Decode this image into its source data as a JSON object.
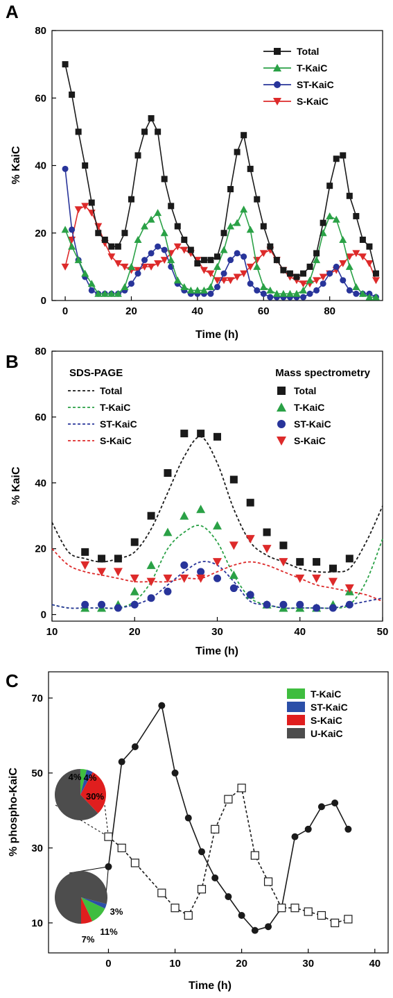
{
  "chart_data": [
    {
      "type": "line",
      "panel_label": "A",
      "xlabel": "Time (h)",
      "ylabel": "% KaiC",
      "xlim": [
        -4,
        96
      ],
      "ylim": [
        0,
        80
      ],
      "x_ticks": [
        0,
        20,
        40,
        60,
        80
      ],
      "y_ticks": [
        0,
        20,
        40,
        60,
        80
      ],
      "legend": {
        "placement": "top-right"
      },
      "series": [
        {
          "name": "Total",
          "color": "#1a1a1a",
          "marker": "square",
          "x": [
            0,
            2,
            4,
            6,
            8,
            10,
            12,
            14,
            16,
            18,
            20,
            22,
            24,
            26,
            28,
            30,
            32,
            34,
            36,
            38,
            40,
            42,
            44,
            46,
            48,
            50,
            52,
            54,
            56,
            58,
            60,
            62,
            64,
            66,
            68,
            70,
            72,
            74,
            76,
            78,
            80,
            82,
            84,
            86,
            88,
            90,
            92,
            94
          ],
          "y": [
            70,
            61,
            50,
            40,
            29,
            20,
            18,
            16,
            16,
            20,
            30,
            43,
            50,
            54,
            50,
            36,
            28,
            22,
            18,
            15,
            11,
            12,
            12,
            13,
            20,
            33,
            44,
            49,
            39,
            30,
            22,
            16,
            12,
            9,
            8,
            7,
            8,
            10,
            14,
            23,
            34,
            42,
            43,
            31,
            25,
            18,
            16,
            8
          ]
        },
        {
          "name": "T-KaiC",
          "color": "#2aa146",
          "marker": "triangle-up",
          "x": [
            0,
            2,
            4,
            6,
            8,
            10,
            12,
            14,
            16,
            18,
            20,
            22,
            24,
            26,
            28,
            30,
            32,
            34,
            36,
            38,
            40,
            42,
            44,
            46,
            48,
            50,
            52,
            54,
            56,
            58,
            60,
            62,
            64,
            66,
            68,
            70,
            72,
            74,
            76,
            78,
            80,
            82,
            84,
            86,
            88,
            90,
            92,
            94
          ],
          "y": [
            21,
            16,
            12,
            8,
            5,
            2,
            2,
            2,
            2,
            4,
            10,
            18,
            22,
            24,
            26,
            20,
            12,
            6,
            4,
            3,
            3,
            3,
            4,
            10,
            15,
            22,
            23,
            27,
            21,
            10,
            4,
            3,
            2,
            2,
            2,
            2,
            3,
            6,
            12,
            20,
            25,
            24,
            18,
            10,
            4,
            2,
            1,
            1
          ]
        },
        {
          "name": "ST-KaiC",
          "color": "#28349a",
          "marker": "circle",
          "x": [
            0,
            2,
            4,
            6,
            8,
            10,
            12,
            14,
            16,
            18,
            20,
            22,
            24,
            26,
            28,
            30,
            32,
            34,
            36,
            38,
            40,
            42,
            44,
            46,
            48,
            50,
            52,
            54,
            56,
            58,
            60,
            62,
            64,
            66,
            68,
            70,
            72,
            74,
            76,
            78,
            80,
            82,
            84,
            86,
            88,
            90,
            92,
            94
          ],
          "y": [
            39,
            21,
            12,
            7,
            3,
            2,
            2,
            2,
            2,
            3,
            5,
            8,
            12,
            14,
            16,
            15,
            10,
            5,
            3,
            2,
            2,
            2,
            2,
            4,
            8,
            12,
            14,
            13,
            5,
            3,
            2,
            1,
            1,
            1,
            1,
            1,
            1,
            2,
            3,
            5,
            8,
            10,
            6,
            3,
            2,
            2,
            2,
            1
          ]
        },
        {
          "name": "S-KaiC",
          "color": "#dd2a2a",
          "marker": "triangle-down",
          "x": [
            0,
            2,
            4,
            6,
            8,
            10,
            12,
            14,
            16,
            18,
            20,
            22,
            24,
            26,
            28,
            30,
            32,
            34,
            36,
            38,
            40,
            42,
            44,
            46,
            48,
            50,
            52,
            54,
            56,
            58,
            60,
            62,
            64,
            66,
            68,
            70,
            72,
            74,
            76,
            78,
            80,
            82,
            84,
            86,
            88,
            90,
            92,
            94
          ],
          "y": [
            10,
            18,
            27,
            28,
            26,
            22,
            17,
            13,
            11,
            10,
            9,
            9,
            10,
            10,
            11,
            12,
            14,
            16,
            15,
            14,
            12,
            9,
            8,
            6,
            6,
            6,
            7,
            8,
            10,
            12,
            14,
            15,
            12,
            9,
            7,
            6,
            5,
            5,
            6,
            7,
            8,
            9,
            11,
            13,
            14,
            13,
            11,
            6
          ]
        }
      ]
    },
    {
      "type": "line",
      "panel_label": "B",
      "xlabel": "Time (h)",
      "ylabel": "% KaiC",
      "xlim": [
        10,
        50
      ],
      "ylim": [
        -2,
        80
      ],
      "x_ticks": [
        10,
        20,
        30,
        40,
        50
      ],
      "y_ticks": [
        0,
        20,
        40,
        60,
        80
      ],
      "legend_left_title": "SDS-PAGE",
      "legend_right_title": "Mass spectrometry",
      "legend": {
        "placement": "top"
      },
      "series": [
        {
          "name": "Total",
          "method": "SDS-PAGE",
          "style": "dashed",
          "color": "#1a1a1a",
          "x": [
            10,
            12,
            14,
            16,
            18,
            20,
            22,
            24,
            26,
            28,
            30,
            32,
            34,
            36,
            38,
            40,
            42,
            44,
            46,
            48,
            50
          ],
          "y": [
            28,
            19,
            17,
            16,
            17,
            19,
            26,
            37,
            48,
            54,
            46,
            32,
            22,
            18,
            16,
            14,
            13,
            13,
            14,
            22,
            33
          ]
        },
        {
          "name": "T-KaiC",
          "method": "SDS-PAGE",
          "style": "dashed",
          "color": "#2aa146",
          "x": [
            10,
            12,
            14,
            16,
            18,
            20,
            22,
            24,
            26,
            28,
            30,
            32,
            34,
            36,
            38,
            40,
            42,
            44,
            46,
            48,
            50
          ],
          "y": [
            3,
            2,
            2,
            2,
            2,
            4,
            10,
            20,
            25,
            27,
            22,
            12,
            5,
            3,
            2,
            2,
            2,
            2,
            3,
            10,
            23
          ]
        },
        {
          "name": "ST-KaiC",
          "method": "SDS-PAGE",
          "style": "dashed",
          "color": "#28349a",
          "x": [
            10,
            12,
            14,
            16,
            18,
            20,
            22,
            24,
            26,
            28,
            30,
            32,
            34,
            36,
            38,
            40,
            42,
            44,
            46,
            48,
            50
          ],
          "y": [
            3,
            2,
            2,
            2,
            2,
            3,
            5,
            9,
            13,
            16,
            15,
            10,
            4,
            3,
            2,
            2,
            2,
            2,
            3,
            4,
            5
          ]
        },
        {
          "name": "S-KaiC",
          "method": "SDS-PAGE",
          "style": "dashed",
          "color": "#dd2a2a",
          "x": [
            10,
            12,
            14,
            16,
            18,
            20,
            22,
            24,
            26,
            28,
            30,
            32,
            34,
            36,
            38,
            40,
            42,
            44,
            46,
            48,
            50
          ],
          "y": [
            20,
            15,
            13,
            12,
            11,
            10,
            10,
            10,
            11,
            11,
            13,
            15,
            16,
            15,
            13,
            11,
            9,
            8,
            7,
            6,
            4
          ]
        },
        {
          "name": "Total",
          "method": "Mass spectrometry",
          "marker": "square",
          "color": "#1a1a1a",
          "x": [
            14,
            16,
            18,
            20,
            22,
            24,
            26,
            28,
            30,
            32,
            34,
            36,
            38,
            40,
            42,
            44,
            46
          ],
          "y": [
            19,
            17,
            17,
            22,
            30,
            43,
            55,
            55,
            54,
            41,
            34,
            25,
            21,
            16,
            16,
            14,
            17
          ]
        },
        {
          "name": "T-KaiC",
          "method": "Mass spectrometry",
          "marker": "triangle-up",
          "color": "#2aa146",
          "x": [
            14,
            16,
            18,
            20,
            22,
            24,
            26,
            28,
            30,
            32,
            34,
            36,
            38,
            40,
            42,
            44,
            46
          ],
          "y": [
            2,
            2,
            3,
            7,
            15,
            25,
            30,
            32,
            27,
            12,
            6,
            3,
            2,
            2,
            2,
            3,
            7
          ]
        },
        {
          "name": "ST-KaiC",
          "method": "Mass spectrometry",
          "marker": "circle",
          "color": "#28349a",
          "x": [
            14,
            16,
            18,
            20,
            22,
            24,
            26,
            28,
            30,
            32,
            34,
            36,
            38,
            40,
            42,
            44,
            46
          ],
          "y": [
            3,
            3,
            2,
            3,
            5,
            7,
            15,
            13,
            11,
            8,
            6,
            3,
            3,
            3,
            2,
            2,
            3
          ]
        },
        {
          "name": "S-KaiC",
          "method": "Mass spectrometry",
          "marker": "triangle-down",
          "color": "#dd2a2a",
          "x": [
            14,
            16,
            18,
            20,
            22,
            24,
            26,
            28,
            30,
            32,
            34,
            36,
            38,
            40,
            42,
            44,
            46
          ],
          "y": [
            15,
            13,
            13,
            11,
            10,
            11,
            11,
            11,
            16,
            21,
            23,
            20,
            16,
            11,
            11,
            10,
            8
          ]
        }
      ]
    },
    {
      "type": "line",
      "panel_label": "C",
      "xlabel": "Time (h)",
      "ylabel": "% phospho-KaiC",
      "xlim": [
        -9,
        42
      ],
      "ylim": [
        2,
        77
      ],
      "x_ticks": [
        0,
        10,
        20,
        30,
        40
      ],
      "y_ticks": [
        10,
        30,
        50,
        70
      ],
      "legend": {
        "placement": "top-right"
      },
      "legend_items": [
        {
          "label": "T-KaiC",
          "color": "#3fbd3f"
        },
        {
          "label": "ST-KaiC",
          "color": "#2b4fa8"
        },
        {
          "label": "S-KaiC",
          "color": "#e01e1e"
        },
        {
          "label": "U-KaiC",
          "color": "#4d4d4d"
        }
      ],
      "series": [
        {
          "style": "solid",
          "marker": "filled-circle",
          "color": "#1a1a1a",
          "x": [
            0,
            2,
            4,
            8,
            10,
            12,
            14,
            16,
            18,
            20,
            22,
            24,
            26,
            28,
            30,
            32,
            34,
            36
          ],
          "y": [
            25,
            53,
            57,
            68,
            50,
            38,
            29,
            22,
            17,
            12,
            8,
            9,
            14,
            33,
            35,
            41,
            42,
            35
          ]
        },
        {
          "style": "dashed",
          "marker": "open-square",
          "color": "#1a1a1a",
          "x": [
            0,
            2,
            4,
            8,
            10,
            12,
            14,
            16,
            18,
            20,
            22,
            24,
            26,
            28,
            30,
            32,
            34,
            36
          ],
          "y": [
            33,
            30,
            26,
            18,
            14,
            12,
            19,
            35,
            43,
            46,
            28,
            21,
            14,
            14,
            13,
            12,
            10,
            11
          ]
        }
      ],
      "pies": [
        {
          "anchor_time": 0,
          "slices": [
            {
              "label": "T-KaiC",
              "value": 4,
              "text": "4%"
            },
            {
              "label": "ST-KaiC",
              "value": 4,
              "text": "4%"
            },
            {
              "label": "S-KaiC",
              "value": 30,
              "text": "30%"
            },
            {
              "label": "U-KaiC",
              "value": 62,
              "text": ""
            }
          ]
        },
        {
          "anchor_time": 0,
          "slices": [
            {
              "label": "T-KaiC",
              "value": 11,
              "text": "11%"
            },
            {
              "label": "ST-KaiC",
              "value": 3,
              "text": "3%"
            },
            {
              "label": "S-KaiC",
              "value": 7,
              "text": "7%"
            },
            {
              "label": "U-KaiC",
              "value": 79,
              "text": ""
            }
          ]
        }
      ]
    }
  ]
}
